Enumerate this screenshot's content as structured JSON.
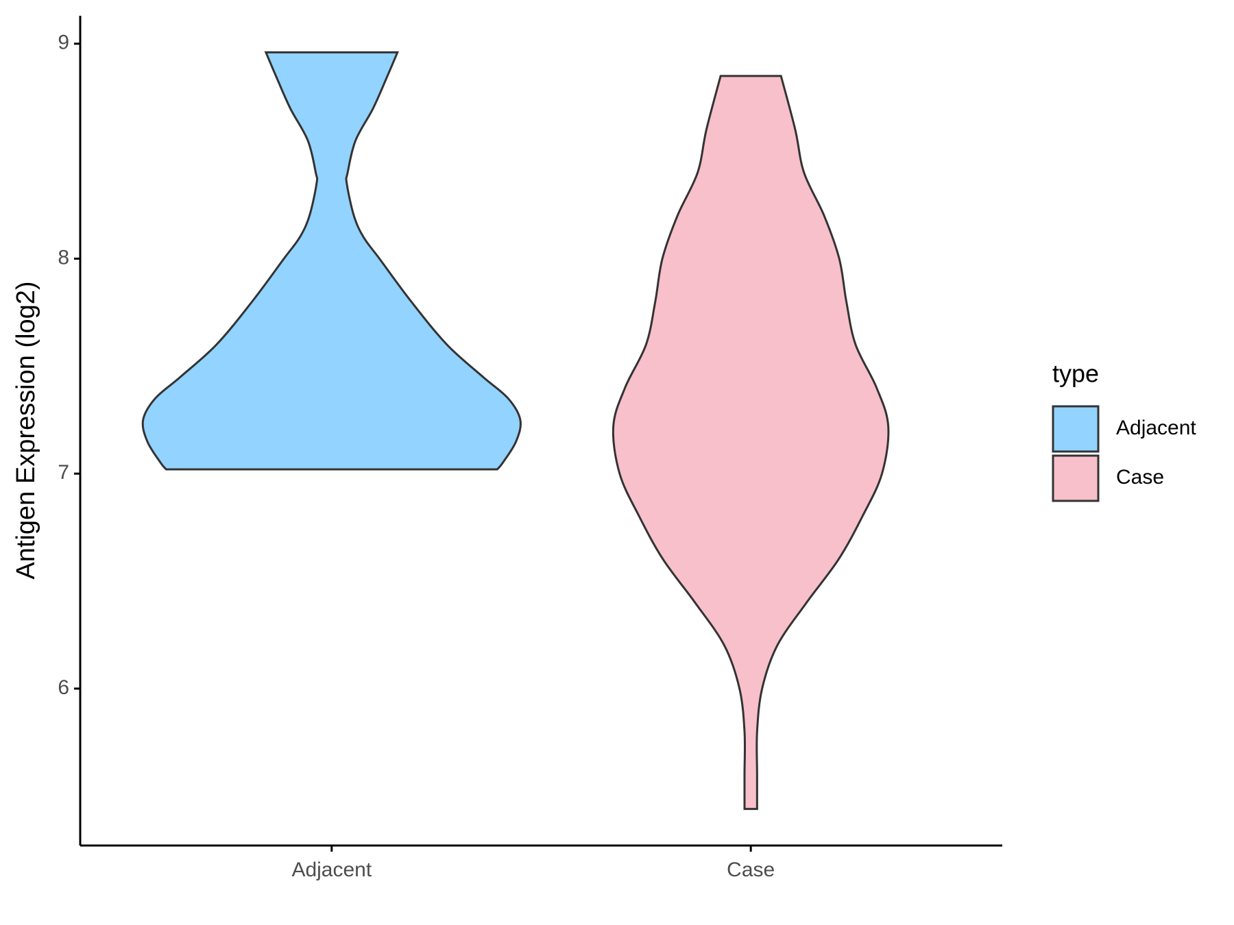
{
  "chart_data": {
    "type": "violin",
    "y_label": "Antigen Expression (log2)",
    "categories": [
      "Adjacent",
      "Case"
    ],
    "legend_title": "type",
    "legend_position": "right",
    "ylim": [
      5.27,
      9.13
    ],
    "yticks": [
      6,
      7,
      8,
      9
    ],
    "series": [
      {
        "name": "Adjacent",
        "color": "#92d3ff",
        "y": [
          8.96,
          8.85,
          8.7,
          8.55,
          8.4,
          8.35,
          8.2,
          8.1,
          8.0,
          7.8,
          7.6,
          7.45,
          7.35,
          7.25,
          7.15,
          7.05,
          7.02
        ],
        "half_widths": [
          0.157,
          0.133,
          0.099,
          0.057,
          0.038,
          0.036,
          0.053,
          0.076,
          0.114,
          0.19,
          0.275,
          0.361,
          0.421,
          0.45,
          0.44,
          0.408,
          0.395
        ]
      },
      {
        "name": "Case",
        "color": "#f7c0cb",
        "y": [
          8.85,
          8.6,
          8.4,
          8.2,
          8.0,
          7.8,
          7.6,
          7.4,
          7.22,
          7.0,
          6.8,
          6.6,
          6.4,
          6.2,
          6.0,
          5.8,
          5.6,
          5.44
        ],
        "half_widths": [
          0.072,
          0.106,
          0.127,
          0.175,
          0.211,
          0.228,
          0.25,
          0.3,
          0.328,
          0.313,
          0.266,
          0.209,
          0.133,
          0.063,
          0.027,
          0.015,
          0.015,
          0.015
        ]
      }
    ]
  }
}
